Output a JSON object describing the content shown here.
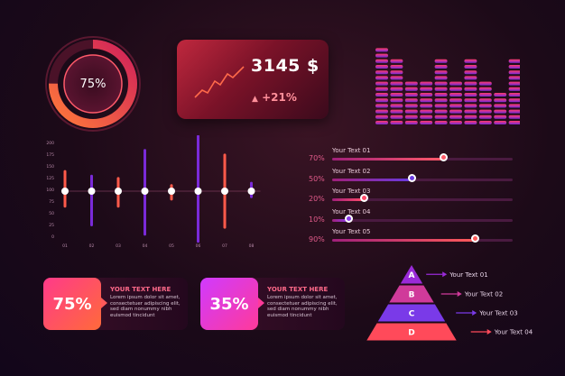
{
  "donut": {
    "label": "75%",
    "value": 75
  },
  "stat": {
    "value": "3145 $",
    "change": "+21%"
  },
  "equalizer": {
    "levels": [
      1.0,
      0.85,
      0.6,
      0.6,
      0.85,
      0.6,
      0.85,
      0.6,
      0.4,
      0.85
    ]
  },
  "vchart": {
    "y_ticks": [
      "200",
      "175",
      "150",
      "125",
      "100",
      "75",
      "50",
      "25",
      "0"
    ],
    "x_ticks": [
      "01",
      "02",
      "03",
      "04",
      "05",
      "06",
      "07",
      "08"
    ],
    "bars": [
      {
        "up": 0.45,
        "down": 0.35,
        "color": "#ff5a4a"
      },
      {
        "up": 0.35,
        "down": 0.75,
        "color": "#7a2ad8"
      },
      {
        "up": 0.3,
        "down": 0.35,
        "color": "#ff5a4a"
      },
      {
        "up": 0.9,
        "down": 0.95,
        "color": "#7a2ad8"
      },
      {
        "up": 0.15,
        "down": 0.2,
        "color": "#ff5a4a"
      },
      {
        "up": 1.2,
        "down": 1.1,
        "color": "#7a2ad8"
      },
      {
        "up": 0.8,
        "down": 0.8,
        "color": "#ff5a4a"
      },
      {
        "up": 0.2,
        "down": 0.15,
        "color": "#7a2ad8"
      }
    ]
  },
  "progress": [
    {
      "label": "Your Text 01",
      "pct": "70%",
      "value": 0.7,
      "color": "#ff5a6a"
    },
    {
      "label": "Your Text 02",
      "pct": "50%",
      "value": 0.5,
      "color": "#6a3ae0"
    },
    {
      "label": "Your Text 03",
      "pct": "20%",
      "value": 0.2,
      "color": "#ff4a6a"
    },
    {
      "label": "Your Text 04",
      "pct": "10%",
      "value": 0.1,
      "color": "#8a3ae8"
    },
    {
      "label": "Your Text 05",
      "pct": "90%",
      "value": 0.9,
      "color": "#ff5a5a"
    }
  ],
  "cards": [
    {
      "pct": "75%",
      "title": "YOUR TEXT HERE",
      "body": "Lorem ipsum dolor sit amet, consectetuer adipiscing elit, sed diam nonummy nibh euismod tincidunt"
    },
    {
      "pct": "35%",
      "title": "YOUR TEXT HERE",
      "body": "Lorem ipsum dolor sit amet, consectetuer adipiscing elit, sed diam nonummy nibh euismod tincidunt"
    }
  ],
  "pyramid": {
    "letters": [
      "A",
      "B",
      "C",
      "D"
    ],
    "labels": [
      "Your Text 01",
      "Your Text 02",
      "Your Text 03",
      "Your Text 04"
    ]
  }
}
